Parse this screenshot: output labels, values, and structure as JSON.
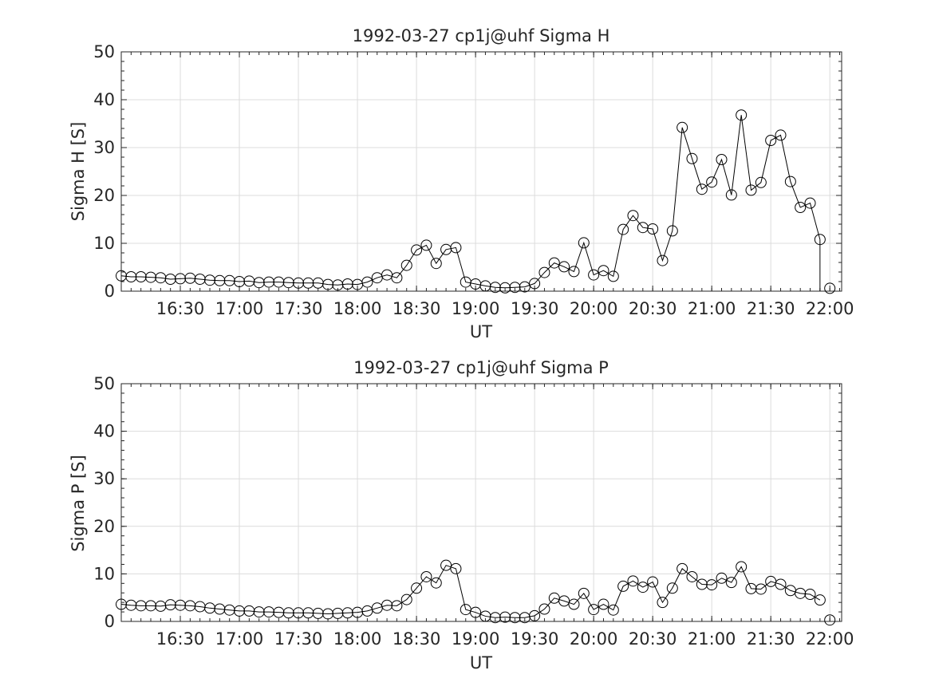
{
  "chart_data": [
    {
      "type": "line",
      "title": "1992-03-27  cp1j@uhf Sigma H",
      "xlabel": "UT",
      "ylabel": "Sigma H [S]",
      "ylim": [
        0,
        50
      ],
      "yticks": [
        "0",
        "10",
        "20",
        "30",
        "40",
        "50"
      ],
      "xlim": [
        "16:00",
        "22:06"
      ],
      "xticks": [
        "16:30",
        "17:00",
        "17:30",
        "18:00",
        "18:30",
        "19:00",
        "19:30",
        "20:00",
        "20:30",
        "21:00",
        "21:30",
        "22:00"
      ],
      "grid": true,
      "marker": "circle",
      "color": "#000000",
      "series": [
        {
          "x": [
            "16:00",
            "16:05",
            "16:10",
            "16:15",
            "16:20",
            "16:25",
            "16:30",
            "16:35",
            "16:40",
            "16:45",
            "16:50",
            "16:55",
            "17:00",
            "17:05",
            "17:10",
            "17:15",
            "17:20",
            "17:25",
            "17:30",
            "17:35",
            "17:40",
            "17:45",
            "17:50",
            "17:55",
            "18:00",
            "18:05",
            "18:10",
            "18:15",
            "18:20",
            "18:25",
            "18:30",
            "18:35",
            "18:40",
            "18:45",
            "18:50",
            "18:55",
            "19:00",
            "19:05",
            "19:10",
            "19:15",
            "19:20",
            "19:25",
            "19:30",
            "19:35",
            "19:40",
            "19:45",
            "19:50",
            "19:55",
            "20:00",
            "20:05",
            "20:10",
            "20:15",
            "20:20",
            "20:25",
            "20:30",
            "20:35",
            "20:40",
            "20:45",
            "20:50",
            "20:55",
            "21:00",
            "21:05",
            "21:10",
            "21:15",
            "21:20",
            "21:25",
            "21:30",
            "21:35",
            "21:40",
            "21:45",
            "21:50",
            "21:55",
            "22:00"
          ],
          "values": [
            3.2,
            3.0,
            3.0,
            2.9,
            2.8,
            2.5,
            2.6,
            2.7,
            2.5,
            2.3,
            2.2,
            2.2,
            2.0,
            2.1,
            1.8,
            1.9,
            1.9,
            1.8,
            1.7,
            1.7,
            1.7,
            1.4,
            1.3,
            1.5,
            1.4,
            1.9,
            2.8,
            3.4,
            2.8,
            5.4,
            8.6,
            9.6,
            5.8,
            8.7,
            9.1,
            1.9,
            1.5,
            1.1,
            0.8,
            0.7,
            0.8,
            0.9,
            1.6,
            3.9,
            5.9,
            5.1,
            4.1,
            10.1,
            3.4,
            4.3,
            3.1,
            12.9,
            15.8,
            13.3,
            13.0,
            6.4,
            12.6,
            34.2,
            27.7,
            21.3,
            22.8,
            27.5,
            20.1,
            36.8,
            21.1,
            22.7,
            31.5,
            32.6,
            22.9,
            17.5,
            18.4,
            10.8,
            0.6
          ]
        }
      ]
    },
    {
      "type": "line",
      "title": "1992-03-27  cp1j@uhf Sigma P",
      "xlabel": "UT",
      "ylabel": "Sigma P [S]",
      "ylim": [
        0,
        50
      ],
      "yticks": [
        "0",
        "10",
        "20",
        "30",
        "40",
        "50"
      ],
      "xlim": [
        "16:00",
        "22:06"
      ],
      "xticks": [
        "16:30",
        "17:00",
        "17:30",
        "18:00",
        "18:30",
        "19:00",
        "19:30",
        "20:00",
        "20:30",
        "21:00",
        "21:30",
        "22:00"
      ],
      "grid": true,
      "marker": "circle",
      "color": "#000000",
      "series": [
        {
          "x": [
            "16:00",
            "16:05",
            "16:10",
            "16:15",
            "16:20",
            "16:25",
            "16:30",
            "16:35",
            "16:40",
            "16:45",
            "16:50",
            "16:55",
            "17:00",
            "17:05",
            "17:10",
            "17:15",
            "17:20",
            "17:25",
            "17:30",
            "17:35",
            "17:40",
            "17:45",
            "17:50",
            "17:55",
            "18:00",
            "18:05",
            "18:10",
            "18:15",
            "18:20",
            "18:25",
            "18:30",
            "18:35",
            "18:40",
            "18:45",
            "18:50",
            "18:55",
            "19:00",
            "19:05",
            "19:10",
            "19:15",
            "19:20",
            "19:25",
            "19:30",
            "19:35",
            "19:40",
            "19:45",
            "19:50",
            "19:55",
            "20:00",
            "20:05",
            "20:10",
            "20:15",
            "20:20",
            "20:25",
            "20:30",
            "20:35",
            "20:40",
            "20:45",
            "20:50",
            "20:55",
            "21:00",
            "21:05",
            "21:10",
            "21:15",
            "21:20",
            "21:25",
            "21:30",
            "21:35",
            "21:40",
            "21:45",
            "21:50",
            "21:55",
            "22:00"
          ],
          "values": [
            3.6,
            3.4,
            3.3,
            3.3,
            3.2,
            3.5,
            3.4,
            3.3,
            3.1,
            2.8,
            2.6,
            2.4,
            2.2,
            2.2,
            2.0,
            2.0,
            1.9,
            1.8,
            1.8,
            1.8,
            1.7,
            1.6,
            1.7,
            1.8,
            1.9,
            2.2,
            2.8,
            3.4,
            3.3,
            4.6,
            7.0,
            9.4,
            8.1,
            11.8,
            11.1,
            2.5,
            1.9,
            1.1,
            0.8,
            0.9,
            0.8,
            0.8,
            1.2,
            2.6,
            4.9,
            4.3,
            3.6,
            5.9,
            2.5,
            3.6,
            2.4,
            7.4,
            8.5,
            7.2,
            8.3,
            4.0,
            7.0,
            11.1,
            9.4,
            7.8,
            7.7,
            9.1,
            8.2,
            11.5,
            6.9,
            6.8,
            8.4,
            7.8,
            6.5,
            5.9,
            5.7,
            4.5,
            0.3
          ]
        }
      ]
    }
  ]
}
